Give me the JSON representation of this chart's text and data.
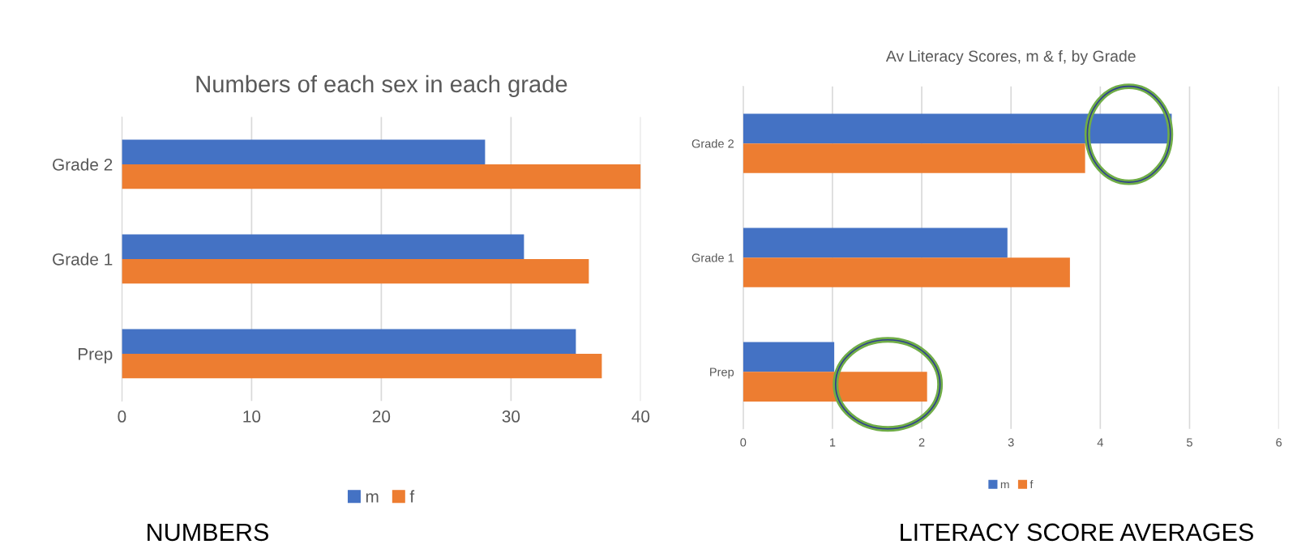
{
  "chart_data": [
    {
      "type": "bar",
      "orientation": "horizontal",
      "title": "Numbers of each sex in each grade",
      "categories": [
        "Grade 2",
        "Grade 1",
        "Prep"
      ],
      "series": [
        {
          "name": "m",
          "color": "#4472c4",
          "values": [
            28,
            31,
            35
          ]
        },
        {
          "name": "f",
          "color": "#ed7d31",
          "values": [
            40,
            36,
            37
          ]
        }
      ],
      "xlim": [
        0,
        40
      ],
      "xticks": [
        0,
        10,
        20,
        30,
        40
      ],
      "grid": "x",
      "legend": "bottom",
      "annotations": [
        "NUMBERS"
      ]
    },
    {
      "type": "bar",
      "orientation": "horizontal",
      "title": "Av Literacy Scores, m & f, by Grade",
      "categories": [
        "Grade 2",
        "Grade 1",
        "Prep"
      ],
      "series": [
        {
          "name": "m",
          "color": "#4472c4",
          "values": [
            4.8,
            2.96,
            1.02
          ]
        },
        {
          "name": "f",
          "color": "#ed7d31",
          "values": [
            3.83,
            3.66,
            2.06
          ]
        }
      ],
      "xlim": [
        0,
        6
      ],
      "xticks": [
        0,
        1,
        2,
        3,
        4,
        5,
        6
      ],
      "grid": "x",
      "legend": "bottom",
      "annotations": [
        "LITERACY SCORE AVERAGES"
      ]
    }
  ]
}
